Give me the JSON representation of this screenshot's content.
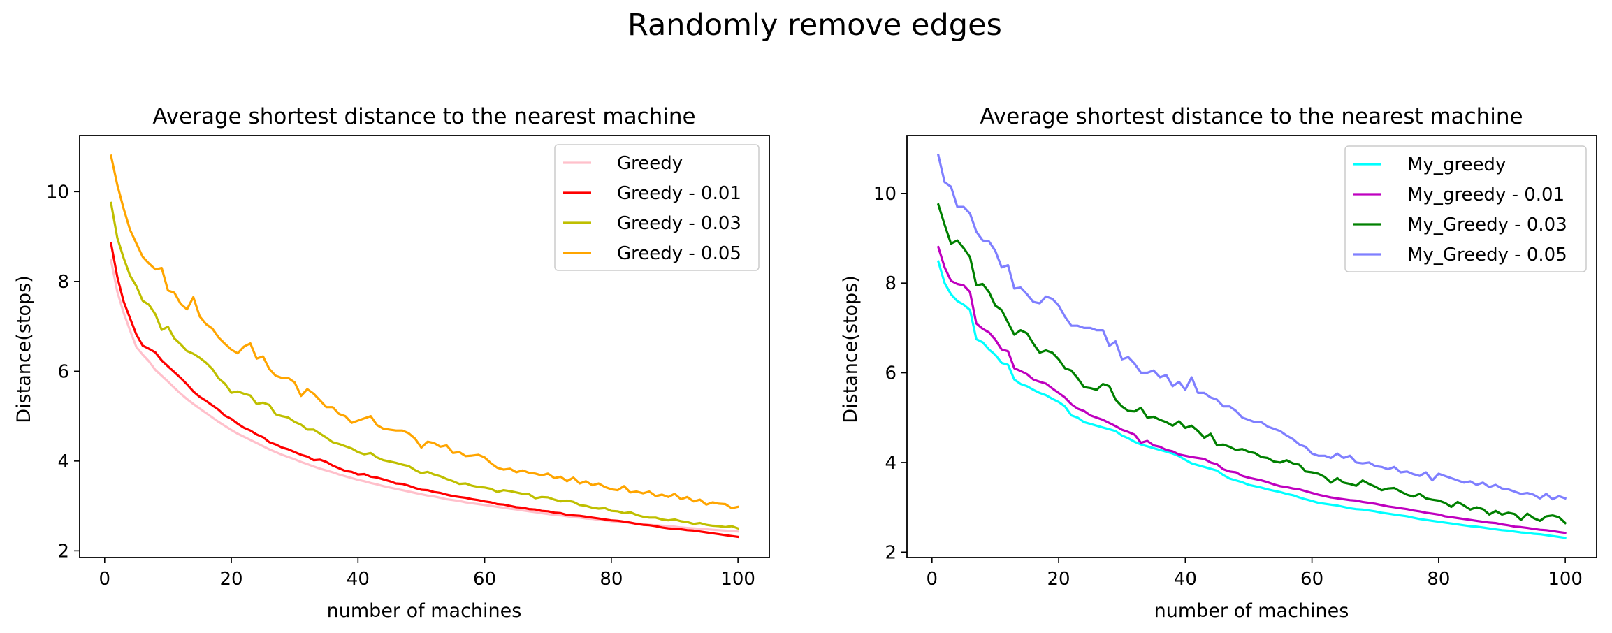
{
  "figure_title": "Randomly remove edges",
  "chart_data": [
    {
      "type": "line",
      "title": "Average shortest distance to the nearest machine",
      "xlabel": "number of machines",
      "ylabel": "Distance(stops)",
      "xlim": [
        -3.95,
        104.95
      ],
      "ylim": [
        1.85,
        11.25
      ],
      "xticks": [
        0,
        20,
        40,
        60,
        80,
        100
      ],
      "yticks": [
        2,
        4,
        6,
        8,
        10
      ],
      "grid": false,
      "legend_position": "top-right",
      "x": {
        "start": 1,
        "end": 100,
        "step": 1
      },
      "series": [
        {
          "name": "Greedy",
          "color": "#ffc0cb",
          "values": [
            8.47,
            7.77,
            7.3,
            6.91,
            6.54,
            6.37,
            6.22,
            6.03,
            5.9,
            5.77,
            5.63,
            5.5,
            5.38,
            5.27,
            5.17,
            5.07,
            4.97,
            4.87,
            4.78,
            4.69,
            4.61,
            4.54,
            4.47,
            4.4,
            4.33,
            4.26,
            4.2,
            4.14,
            4.09,
            4.04,
            3.98,
            3.93,
            3.88,
            3.83,
            3.79,
            3.75,
            3.7,
            3.66,
            3.62,
            3.58,
            3.55,
            3.51,
            3.48,
            3.44,
            3.41,
            3.38,
            3.35,
            3.32,
            3.29,
            3.26,
            3.23,
            3.21,
            3.18,
            3.15,
            3.13,
            3.11,
            3.08,
            3.06,
            3.04,
            3.02,
            3.0,
            2.98,
            2.96,
            2.94,
            2.92,
            2.9,
            2.88,
            2.86,
            2.84,
            2.82,
            2.8,
            2.79,
            2.77,
            2.75,
            2.74,
            2.72,
            2.71,
            2.69,
            2.68,
            2.66,
            2.65,
            2.64,
            2.62,
            2.61,
            2.6,
            2.58,
            2.57,
            2.56,
            2.55,
            2.54,
            2.52,
            2.51,
            2.5,
            2.49,
            2.48,
            2.47,
            2.46,
            2.45,
            2.44,
            2.43
          ]
        },
        {
          "name": "Greedy - 0.01",
          "color": "#ff0000",
          "values": [
            8.85,
            8.1,
            7.55,
            7.18,
            6.82,
            6.57,
            6.5,
            6.42,
            6.24,
            6.11,
            5.98,
            5.85,
            5.71,
            5.55,
            5.43,
            5.34,
            5.24,
            5.14,
            5.01,
            4.94,
            4.83,
            4.74,
            4.68,
            4.59,
            4.53,
            4.42,
            4.37,
            4.3,
            4.26,
            4.2,
            4.14,
            4.1,
            4.02,
            4.03,
            3.98,
            3.9,
            3.84,
            3.78,
            3.76,
            3.7,
            3.71,
            3.65,
            3.63,
            3.59,
            3.55,
            3.5,
            3.49,
            3.45,
            3.4,
            3.36,
            3.35,
            3.31,
            3.29,
            3.25,
            3.22,
            3.2,
            3.18,
            3.15,
            3.13,
            3.1,
            3.08,
            3.04,
            3.03,
            3.0,
            2.97,
            2.96,
            2.93,
            2.92,
            2.89,
            2.88,
            2.85,
            2.84,
            2.8,
            2.79,
            2.78,
            2.76,
            2.74,
            2.72,
            2.7,
            2.68,
            2.67,
            2.65,
            2.63,
            2.6,
            2.58,
            2.57,
            2.55,
            2.52,
            2.5,
            2.49,
            2.48,
            2.46,
            2.45,
            2.43,
            2.41,
            2.39,
            2.37,
            2.35,
            2.33,
            2.31
          ]
        },
        {
          "name": "Greedy - 0.03",
          "color": "#bfbf00",
          "values": [
            9.75,
            8.97,
            8.52,
            8.13,
            7.9,
            7.57,
            7.48,
            7.27,
            6.92,
            6.99,
            6.73,
            6.6,
            6.45,
            6.39,
            6.3,
            6.19,
            6.05,
            5.84,
            5.72,
            5.52,
            5.55,
            5.5,
            5.46,
            5.27,
            5.3,
            5.25,
            5.04,
            5.0,
            4.97,
            4.87,
            4.81,
            4.7,
            4.7,
            4.61,
            4.52,
            4.42,
            4.38,
            4.33,
            4.28,
            4.2,
            4.15,
            4.18,
            4.08,
            4.02,
            3.99,
            3.96,
            3.92,
            3.89,
            3.8,
            3.73,
            3.76,
            3.7,
            3.66,
            3.6,
            3.55,
            3.49,
            3.5,
            3.45,
            3.42,
            3.41,
            3.38,
            3.31,
            3.35,
            3.33,
            3.3,
            3.27,
            3.26,
            3.17,
            3.2,
            3.19,
            3.14,
            3.1,
            3.12,
            3.09,
            3.02,
            3.0,
            2.96,
            2.94,
            2.95,
            2.89,
            2.88,
            2.84,
            2.86,
            2.8,
            2.76,
            2.74,
            2.74,
            2.7,
            2.68,
            2.7,
            2.66,
            2.64,
            2.6,
            2.62,
            2.58,
            2.56,
            2.55,
            2.53,
            2.55,
            2.5
          ]
        },
        {
          "name": "Greedy - 0.05",
          "color": "#ffa500",
          "values": [
            10.8,
            10.15,
            9.62,
            9.15,
            8.85,
            8.55,
            8.4,
            8.27,
            8.3,
            7.8,
            7.75,
            7.5,
            7.38,
            7.65,
            7.22,
            7.05,
            6.95,
            6.75,
            6.61,
            6.48,
            6.4,
            6.55,
            6.62,
            6.28,
            6.33,
            6.05,
            5.9,
            5.85,
            5.85,
            5.75,
            5.45,
            5.6,
            5.5,
            5.35,
            5.2,
            5.2,
            5.05,
            5.0,
            4.85,
            4.9,
            4.95,
            5.0,
            4.8,
            4.72,
            4.7,
            4.68,
            4.68,
            4.62,
            4.5,
            4.3,
            4.43,
            4.4,
            4.32,
            4.35,
            4.18,
            4.2,
            4.11,
            4.12,
            4.14,
            4.08,
            3.95,
            3.85,
            3.81,
            3.83,
            3.75,
            3.79,
            3.74,
            3.72,
            3.68,
            3.72,
            3.62,
            3.65,
            3.55,
            3.63,
            3.5,
            3.55,
            3.46,
            3.5,
            3.42,
            3.37,
            3.35,
            3.44,
            3.3,
            3.32,
            3.28,
            3.32,
            3.22,
            3.25,
            3.2,
            3.27,
            3.15,
            3.2,
            3.1,
            3.14,
            3.03,
            3.08,
            3.05,
            3.04,
            2.95,
            2.98
          ]
        }
      ]
    },
    {
      "type": "line",
      "title": "Average shortest distance to the nearest machine",
      "xlabel": "number of machines",
      "ylabel": "Distance(stops)",
      "xlim": [
        -3.95,
        104.95
      ],
      "ylim": [
        1.88,
        11.29
      ],
      "xticks": [
        0,
        20,
        40,
        60,
        80,
        100
      ],
      "yticks": [
        2,
        4,
        6,
        8,
        10
      ],
      "grid": false,
      "legend_position": "top-right",
      "x": {
        "start": 1,
        "end": 100,
        "step": 1
      },
      "series": [
        {
          "name": "My_greedy",
          "color": "#00ffff",
          "values": [
            8.48,
            8.0,
            7.75,
            7.6,
            7.52,
            7.4,
            6.75,
            6.68,
            6.52,
            6.4,
            6.22,
            6.18,
            5.85,
            5.75,
            5.7,
            5.62,
            5.55,
            5.5,
            5.42,
            5.35,
            5.25,
            5.05,
            5.0,
            4.9,
            4.86,
            4.82,
            4.78,
            4.74,
            4.7,
            4.6,
            4.54,
            4.46,
            4.4,
            4.36,
            4.32,
            4.28,
            4.24,
            4.2,
            4.14,
            4.06,
            3.98,
            3.94,
            3.9,
            3.86,
            3.82,
            3.72,
            3.64,
            3.6,
            3.56,
            3.5,
            3.47,
            3.44,
            3.4,
            3.37,
            3.34,
            3.3,
            3.27,
            3.22,
            3.18,
            3.14,
            3.1,
            3.08,
            3.06,
            3.04,
            3.01,
            2.98,
            2.96,
            2.95,
            2.93,
            2.91,
            2.88,
            2.86,
            2.84,
            2.82,
            2.8,
            2.77,
            2.74,
            2.72,
            2.7,
            2.68,
            2.66,
            2.64,
            2.62,
            2.6,
            2.58,
            2.57,
            2.55,
            2.53,
            2.51,
            2.49,
            2.48,
            2.46,
            2.44,
            2.43,
            2.41,
            2.4,
            2.38,
            2.36,
            2.34,
            2.32
          ]
        },
        {
          "name": "My_greedy - 0.01",
          "color": "#bf00bf",
          "values": [
            8.8,
            8.35,
            8.05,
            7.98,
            7.95,
            7.8,
            7.1,
            6.98,
            6.9,
            6.74,
            6.52,
            6.48,
            6.1,
            6.04,
            5.97,
            5.85,
            5.8,
            5.76,
            5.65,
            5.55,
            5.45,
            5.3,
            5.2,
            5.15,
            5.05,
            5.0,
            4.95,
            4.88,
            4.81,
            4.73,
            4.68,
            4.62,
            4.44,
            4.48,
            4.38,
            4.35,
            4.28,
            4.25,
            4.18,
            4.15,
            4.12,
            4.1,
            4.08,
            4.0,
            3.96,
            3.85,
            3.8,
            3.78,
            3.7,
            3.66,
            3.63,
            3.6,
            3.56,
            3.51,
            3.47,
            3.45,
            3.42,
            3.4,
            3.36,
            3.32,
            3.28,
            3.25,
            3.22,
            3.2,
            3.18,
            3.16,
            3.15,
            3.12,
            3.1,
            3.08,
            3.05,
            3.02,
            3.0,
            2.98,
            2.96,
            2.93,
            2.91,
            2.88,
            2.86,
            2.84,
            2.8,
            2.78,
            2.76,
            2.74,
            2.72,
            2.7,
            2.68,
            2.66,
            2.65,
            2.62,
            2.6,
            2.57,
            2.56,
            2.54,
            2.52,
            2.5,
            2.49,
            2.47,
            2.45,
            2.43
          ]
        },
        {
          "name": "My_Greedy - 0.03",
          "color": "#008000",
          "values": [
            9.75,
            9.3,
            8.88,
            8.95,
            8.78,
            8.58,
            7.95,
            7.98,
            7.8,
            7.5,
            7.4,
            7.12,
            6.85,
            6.95,
            6.88,
            6.65,
            6.45,
            6.5,
            6.45,
            6.3,
            6.1,
            6.05,
            5.88,
            5.68,
            5.66,
            5.62,
            5.75,
            5.7,
            5.4,
            5.25,
            5.15,
            5.14,
            5.22,
            5.0,
            5.02,
            4.95,
            4.9,
            4.82,
            4.92,
            4.77,
            4.82,
            4.7,
            4.55,
            4.64,
            4.38,
            4.4,
            4.35,
            4.28,
            4.3,
            4.24,
            4.21,
            4.12,
            4.1,
            4.02,
            4.0,
            4.05,
            3.98,
            3.95,
            3.8,
            3.78,
            3.75,
            3.68,
            3.55,
            3.65,
            3.55,
            3.52,
            3.48,
            3.6,
            3.52,
            3.46,
            3.38,
            3.42,
            3.43,
            3.35,
            3.28,
            3.24,
            3.3,
            3.2,
            3.17,
            3.15,
            3.1,
            3.01,
            3.12,
            3.04,
            2.95,
            3.0,
            2.96,
            2.84,
            2.92,
            2.84,
            2.88,
            2.85,
            2.72,
            2.86,
            2.76,
            2.7,
            2.8,
            2.82,
            2.78,
            2.65
          ]
        },
        {
          "name": "My_Greedy - 0.05",
          "color": "#7f7fff",
          "values": [
            10.85,
            10.25,
            10.15,
            9.7,
            9.7,
            9.55,
            9.15,
            8.95,
            8.93,
            8.72,
            8.35,
            8.4,
            7.88,
            7.9,
            7.75,
            7.58,
            7.55,
            7.7,
            7.65,
            7.5,
            7.25,
            7.05,
            7.05,
            7.0,
            7.0,
            6.95,
            6.95,
            6.6,
            6.7,
            6.3,
            6.35,
            6.2,
            6.0,
            6.0,
            6.05,
            5.9,
            5.95,
            5.7,
            5.8,
            5.62,
            5.9,
            5.55,
            5.55,
            5.45,
            5.4,
            5.25,
            5.25,
            5.15,
            5.0,
            4.95,
            4.9,
            4.9,
            4.8,
            4.75,
            4.7,
            4.6,
            4.52,
            4.4,
            4.35,
            4.2,
            4.15,
            4.15,
            4.1,
            4.2,
            4.1,
            4.15,
            4.0,
            3.98,
            4.0,
            3.92,
            3.9,
            3.85,
            3.9,
            3.78,
            3.8,
            3.74,
            3.7,
            3.78,
            3.6,
            3.75,
            3.7,
            3.65,
            3.6,
            3.55,
            3.58,
            3.5,
            3.55,
            3.45,
            3.5,
            3.42,
            3.4,
            3.35,
            3.3,
            3.32,
            3.28,
            3.2,
            3.3,
            3.18,
            3.25,
            3.2
          ]
        }
      ]
    }
  ]
}
